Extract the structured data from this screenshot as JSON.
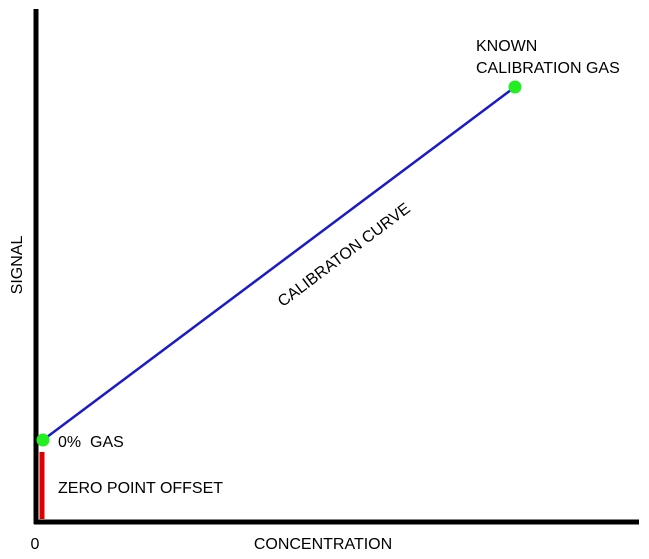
{
  "axes": {
    "x_label": "CONCENTRATION",
    "y_label": "SIGNAL",
    "origin_label": "0"
  },
  "curve": {
    "label": "CALIBRATON CURVE"
  },
  "points": [
    {
      "label_lines": [
        "KNOWN",
        "CALIBRATION GAS"
      ]
    },
    {
      "label_lines": [
        "0%  GAS"
      ]
    }
  ],
  "offset": {
    "label": "ZERO POINT OFFSET"
  }
}
